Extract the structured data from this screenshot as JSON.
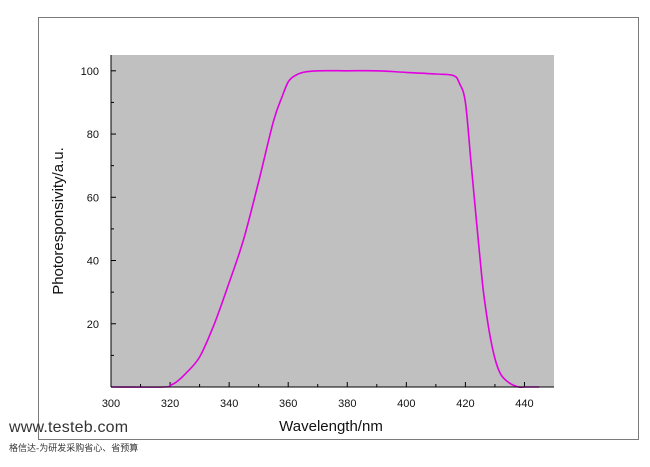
{
  "chart_data": {
    "type": "line",
    "title": "",
    "xlabel": "Wavelength/nm",
    "ylabel": "Photoresponsivity/a.u.",
    "xlim": [
      300,
      450
    ],
    "ylim": [
      0,
      105
    ],
    "x_ticks": [
      300,
      320,
      340,
      360,
      380,
      400,
      420,
      440
    ],
    "y_ticks": [
      20,
      40,
      60,
      80,
      100
    ],
    "plot_background": "#c0c0c0",
    "grid": false,
    "series": [
      {
        "color": "#e000e0",
        "x": [
          300,
          318,
          320,
          322,
          325,
          330,
          335,
          340,
          345,
          350,
          355,
          358,
          360,
          362,
          365,
          370,
          380,
          390,
          400,
          410,
          416,
          418,
          420,
          422,
          424,
          426,
          428,
          430,
          432,
          435,
          438,
          440,
          445
        ],
        "y": [
          0,
          0,
          0.5,
          1.5,
          4,
          9.5,
          20,
          33,
          47,
          65,
          84,
          92,
          96.5,
          98.3,
          99.5,
          100,
          100,
          100,
          99.5,
          99,
          98.5,
          96,
          90,
          70,
          50,
          31,
          18,
          9,
          4,
          1.2,
          0,
          0,
          0
        ]
      }
    ]
  },
  "watermark": {
    "url": "www.testeb.com",
    "tagline": "格信达-为研发采购省心、省预算"
  }
}
